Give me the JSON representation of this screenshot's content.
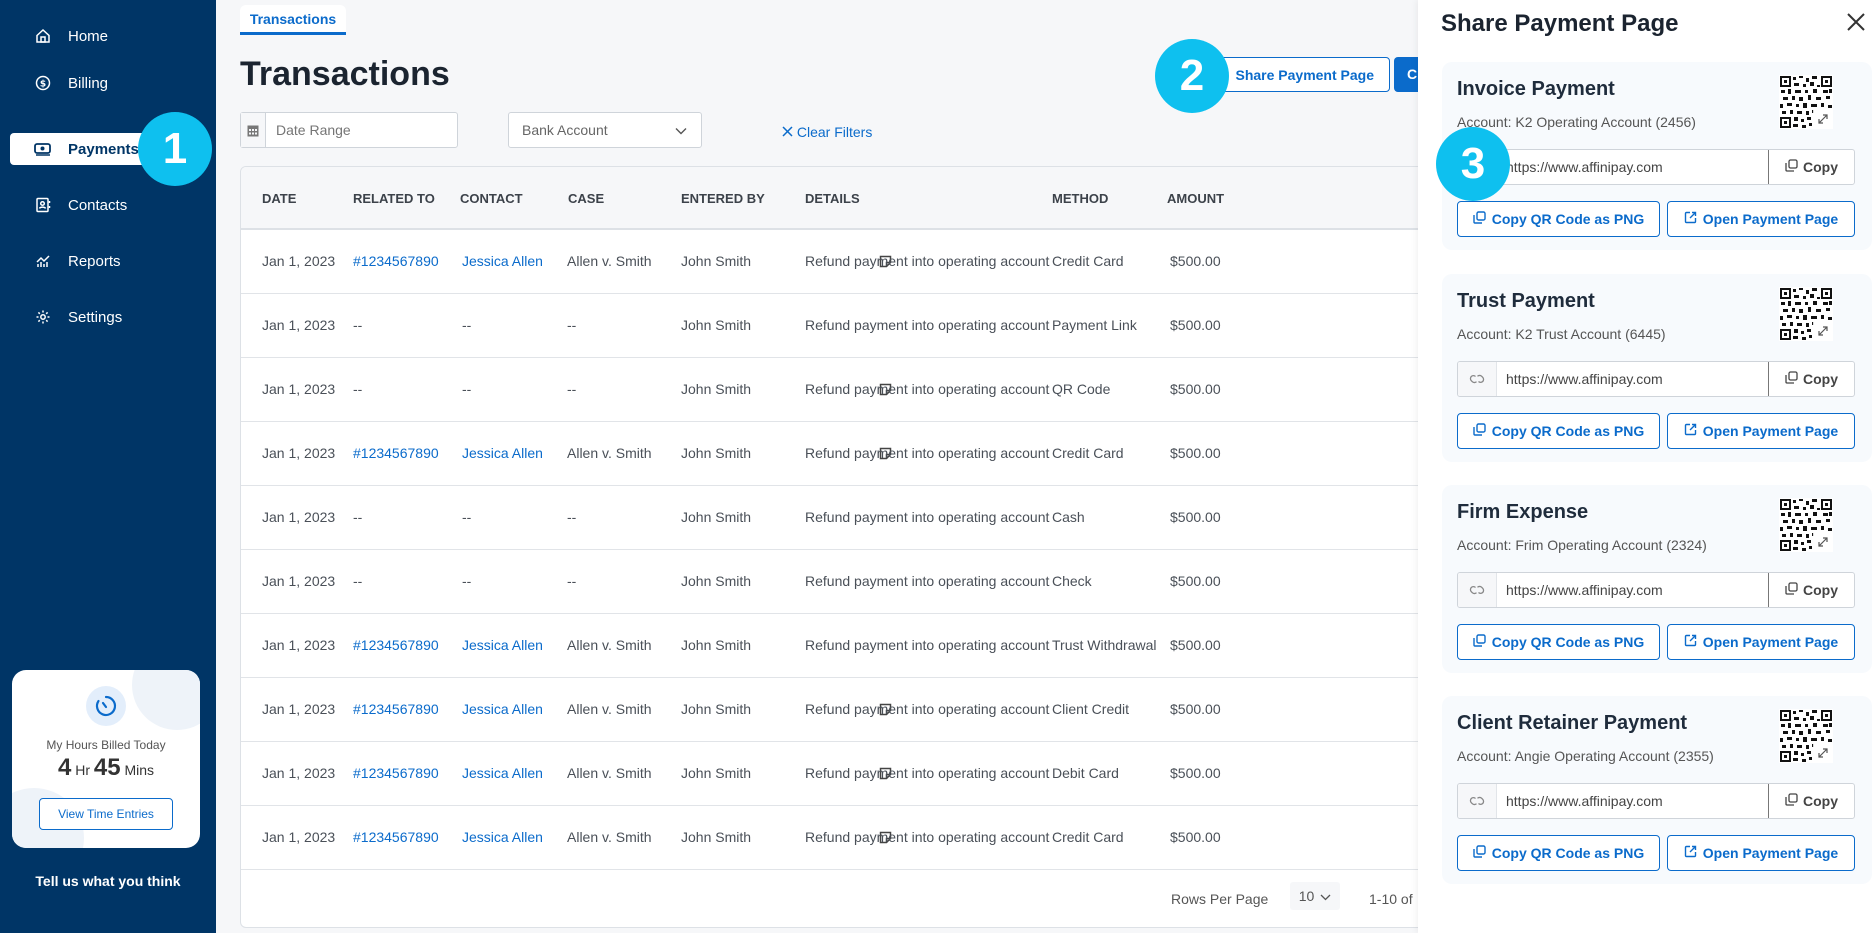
{
  "sidebar": {
    "items": [
      {
        "label": "Home",
        "icon": "home-icon",
        "active": false
      },
      {
        "label": "Billing",
        "icon": "dollar-circle-icon",
        "active": false
      },
      {
        "label": "Payments",
        "icon": "cash-icon",
        "active": true
      },
      {
        "label": "Contacts",
        "icon": "contact-book-icon",
        "active": false
      },
      {
        "label": "Reports",
        "icon": "chart-icon",
        "active": false
      },
      {
        "label": "Settings",
        "icon": "gear-icon",
        "active": false
      }
    ],
    "time_card": {
      "label": "My Hours Billed Today",
      "hours": "4",
      "hours_unit": "Hr",
      "minutes": "45",
      "minutes_unit": "Mins",
      "button_label": "View Time Entries"
    },
    "feedback_label": "Tell us what you think"
  },
  "steps": [
    "1",
    "2",
    "3"
  ],
  "main": {
    "tab_label": "Transactions",
    "title": "Transactions",
    "filters": {
      "date_range_placeholder": "Date Range",
      "bank_account_placeholder": "Bank Account",
      "clear_label": "Clear Filters"
    },
    "actions": {
      "share_label": "Share Payment Page",
      "create_label": "C"
    },
    "table": {
      "columns": [
        "DATE",
        "RELATED TO",
        "CONTACT",
        "CASE",
        "ENTERED BY",
        "DETAILS",
        "METHOD",
        "AMOUNT"
      ],
      "rows": [
        {
          "date": "Jan 1, 2023",
          "related": "#1234567890",
          "contact": "Jessica Allen",
          "case": "Allen v. Smith",
          "entered_by": "John Smith",
          "note": true,
          "details": "Refund payment into operating account",
          "method": "Credit Card",
          "amount": "$500.00"
        },
        {
          "date": "Jan 1, 2023",
          "related": "--",
          "contact": "--",
          "case": "--",
          "entered_by": "John Smith",
          "note": false,
          "details": "Refund payment into operating account",
          "method": "Payment Link",
          "amount": "$500.00"
        },
        {
          "date": "Jan 1, 2023",
          "related": "--",
          "contact": "--",
          "case": "--",
          "entered_by": "John Smith",
          "note": true,
          "details": "Refund payment into operating account",
          "method": "QR Code",
          "amount": "$500.00"
        },
        {
          "date": "Jan 1, 2023",
          "related": "#1234567890",
          "contact": "Jessica Allen",
          "case": "Allen v. Smith",
          "entered_by": "John Smith",
          "note": true,
          "details": "Refund payment into operating account",
          "method": "Credit Card",
          "amount": "$500.00"
        },
        {
          "date": "Jan 1, 2023",
          "related": "--",
          "contact": "--",
          "case": "--",
          "entered_by": "John Smith",
          "note": false,
          "details": "Refund payment into operating account",
          "method": "Cash",
          "amount": "$500.00"
        },
        {
          "date": "Jan 1, 2023",
          "related": "--",
          "contact": "--",
          "case": "--",
          "entered_by": "John Smith",
          "note": false,
          "details": "Refund payment into operating account",
          "method": "Check",
          "amount": "$500.00"
        },
        {
          "date": "Jan 1, 2023",
          "related": "#1234567890",
          "contact": "Jessica Allen",
          "case": "Allen v. Smith",
          "entered_by": "John Smith",
          "note": false,
          "details": "Refund payment into operating account",
          "method": "Trust Withdrawal",
          "amount": "$500.00"
        },
        {
          "date": "Jan 1, 2023",
          "related": "#1234567890",
          "contact": "Jessica Allen",
          "case": "Allen v. Smith",
          "entered_by": "John Smith",
          "note": true,
          "details": "Refund payment into operating account",
          "method": "Client Credit",
          "amount": "$500.00"
        },
        {
          "date": "Jan 1, 2023",
          "related": "#1234567890",
          "contact": "Jessica Allen",
          "case": "Allen v. Smith",
          "entered_by": "John Smith",
          "note": true,
          "details": "Refund payment into operating account",
          "method": "Debit Card",
          "amount": "$500.00"
        },
        {
          "date": "Jan 1, 2023",
          "related": "#1234567890",
          "contact": "Jessica Allen",
          "case": "Allen v. Smith",
          "entered_by": "John Smith",
          "note": true,
          "details": "Refund payment into operating account",
          "method": "Credit Card",
          "amount": "$500.00"
        }
      ]
    },
    "pagination": {
      "rows_per_page_label": "Rows Per Page",
      "rows_per_page_value": "10",
      "range_label": "1-10 of"
    }
  },
  "panel": {
    "title": "Share Payment Page",
    "copy_label": "Copy",
    "copy_qr_label": "Copy QR Code as PNG",
    "open_label": "Open Payment Page",
    "cards": [
      {
        "title": "Invoice Payment",
        "account": "Account: K2 Operating Account (2456)",
        "url": "https://www.affinipay.com"
      },
      {
        "title": "Trust Payment",
        "account": "Account: K2 Trust Account (6445)",
        "url": "https://www.affinipay.com"
      },
      {
        "title": "Firm Expense",
        "account": "Account: Frim Operating Account (2324)",
        "url": "https://www.affinipay.com"
      },
      {
        "title": "Client Retainer Payment",
        "account": "Account: Angie Operating Account (2355)",
        "url": "https://www.affinipay.com"
      }
    ]
  },
  "colors": {
    "sidebar_bg": "#003566",
    "accent": "#0b6bcb",
    "step_marker": "#0ec0ef"
  }
}
